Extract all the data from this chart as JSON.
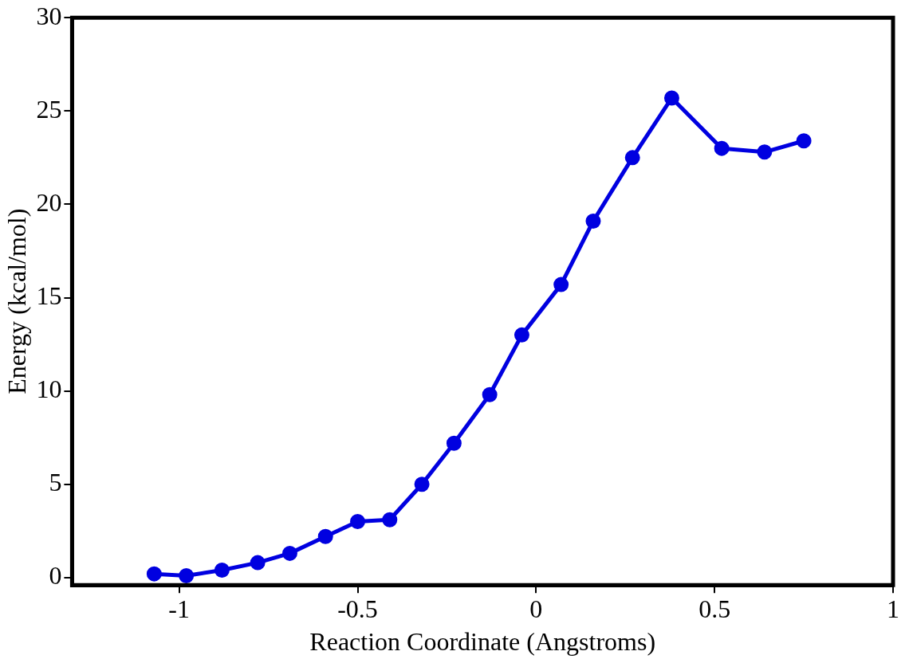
{
  "chart_data": {
    "type": "line",
    "xlabel": "Reaction Coordinate (Angstroms)",
    "ylabel": "Energy (kcal/mol)",
    "x": [
      -1.07,
      -0.98,
      -0.88,
      -0.78,
      -0.69,
      -0.59,
      -0.5,
      -0.41,
      -0.32,
      -0.23,
      -0.13,
      -0.04,
      0.07,
      0.16,
      0.27,
      0.38,
      0.52,
      0.64,
      0.75
    ],
    "series": [
      {
        "color": "#0000e0",
        "values": [
          0.2,
          0.1,
          0.4,
          0.8,
          1.3,
          2.2,
          3.0,
          3.1,
          5.0,
          7.2,
          9.8,
          13.0,
          15.7,
          19.1,
          22.5,
          25.7,
          23.0,
          22.8,
          23.4
        ]
      }
    ],
    "xlim": [
      -1.3,
      1
    ],
    "xticks": [
      -1,
      -0.5,
      0,
      0.5,
      1
    ],
    "ylim": [
      -0.4,
      30
    ],
    "yticks": [
      0,
      5,
      10,
      15,
      20,
      25,
      30
    ],
    "grid": false,
    "legend": false,
    "marker": "circle",
    "line_style": "solid"
  }
}
